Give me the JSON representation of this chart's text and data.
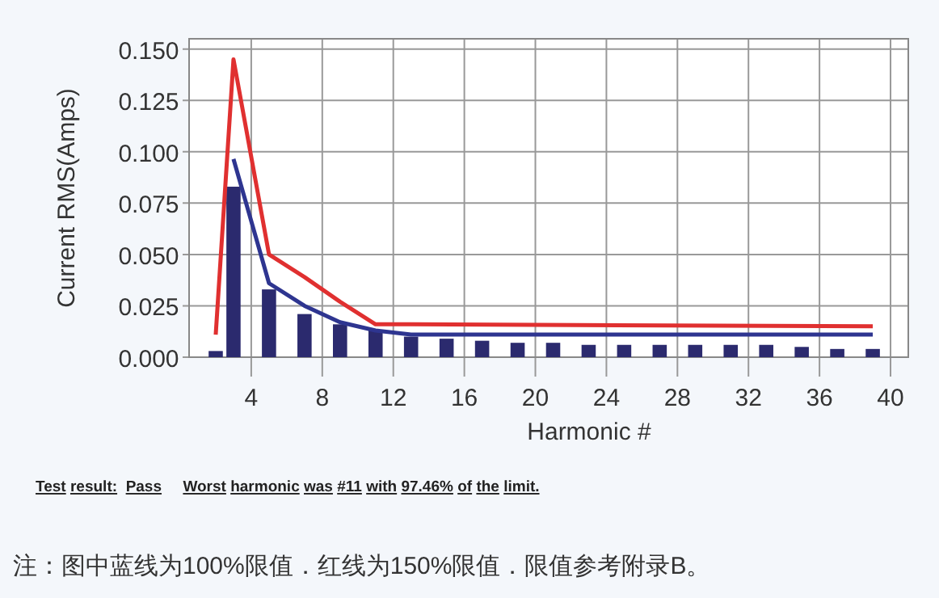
{
  "chart_data": {
    "type": "bar",
    "xlabel": "Harmonic #",
    "ylabel": "Current RMS(Amps)",
    "xlim": [
      0.5,
      41
    ],
    "xticks": [
      4,
      8,
      12,
      16,
      20,
      24,
      28,
      32,
      36,
      40
    ],
    "ylim": [
      0,
      0.155
    ],
    "yticks": [
      {
        "value": 0,
        "label": "0.000"
      },
      {
        "value": 0.025,
        "label": "0.025"
      },
      {
        "value": 0.05,
        "label": "0.050"
      },
      {
        "value": 0.075,
        "label": "0.075"
      },
      {
        "value": 0.1,
        "label": "0.100"
      },
      {
        "value": 0.125,
        "label": "0.125"
      },
      {
        "value": 0.15,
        "label": "0.150"
      }
    ],
    "grid": true,
    "series": [
      {
        "color": "#2b2a6e",
        "x": [
          2,
          3,
          5,
          7,
          9,
          11,
          13,
          15,
          17,
          19,
          21,
          23,
          25,
          27,
          29,
          31,
          33,
          35,
          37,
          39
        ],
        "values": [
          0.003,
          0.083,
          0.033,
          0.021,
          0.016,
          0.013,
          0.01,
          0.009,
          0.008,
          0.007,
          0.007,
          0.006,
          0.006,
          0.006,
          0.006,
          0.006,
          0.006,
          0.005,
          0.004,
          0.004
        ]
      },
      {
        "type": "line",
        "color": "#e03030",
        "x": [
          2,
          3,
          5,
          7,
          9,
          11,
          13,
          39
        ],
        "values": [
          0.011,
          0.145,
          0.05,
          0.039,
          0.027,
          0.016,
          0.016,
          0.015
        ]
      },
      {
        "type": "line",
        "color": "#2e3590",
        "x": [
          3,
          5,
          7,
          9,
          11,
          13,
          39
        ],
        "values": [
          0.0965,
          0.036,
          0.025,
          0.017,
          0.013,
          0.011,
          0.011
        ]
      }
    ],
    "annotations": [
      "Test result:  Pass     Worst harmonic was #11 with 97.46% of the limit.",
      "注：图中蓝线为100%限值．红线为150%限值．限值参考附录B。"
    ]
  }
}
